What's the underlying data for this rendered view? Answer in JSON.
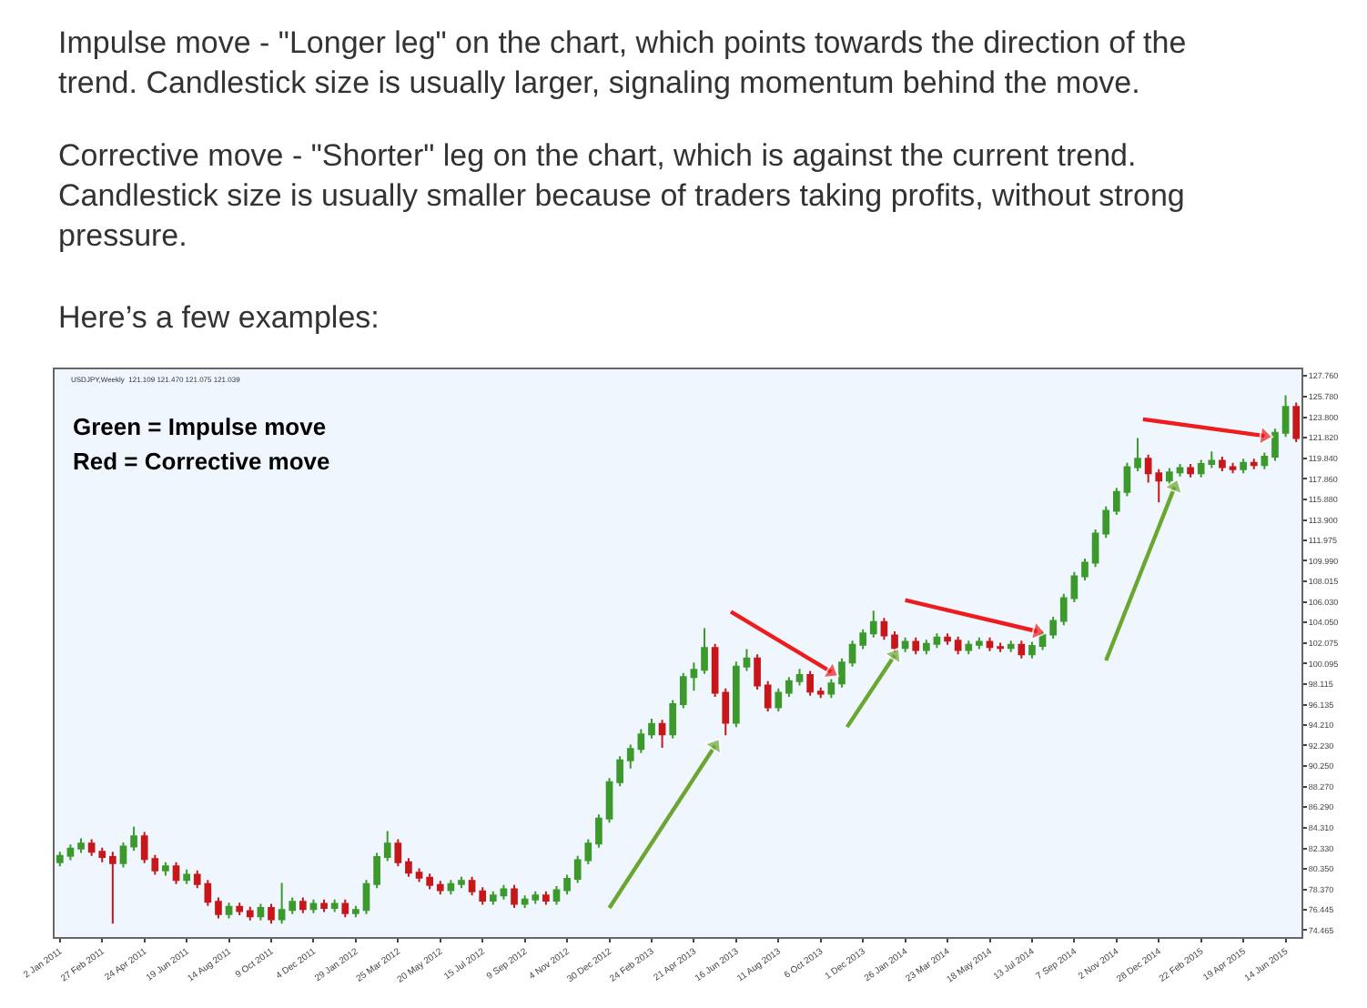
{
  "chart_data": {
    "type": "candlestick",
    "annotations": [
      "Impulse move - \"Longer leg\" on the chart, which points towards the direction of the trend. Candlestick size is usually larger, signaling momentum behind the move.",
      "Corrective move - \"Shorter\" leg on the chart, which is against the current trend. Candlestick size is usually smaller because of traders taking profits, without strong pressure.",
      "Here’s a few examples:",
      "USDJPY,Weekly  121.109 121.470 121.075 121.039",
      "Green = Impulse move",
      "Red = Corrective move"
    ],
    "colors": [
      "#3c9a2c",
      "#3c9a2c",
      "#3c9a2c",
      "#c8171b",
      "#c8171b",
      "#c8171b",
      "#3c9a2c",
      "#3c9a2c",
      "#c8171b",
      "#c8171b",
      "#3c9a2c",
      "#c8171b",
      "#3c9a2c",
      "#c8171b",
      "#c8171b",
      "#c8171b",
      "#3c9a2c",
      "#c8171b",
      "#c8171b",
      "#3c9a2c",
      "#c8171b",
      "#3c9a2c",
      "#3c9a2c",
      "#c8171b",
      "#3c9a2c",
      "#c8171b",
      "#3c9a2c",
      "#c8171b",
      "#3c9a2c",
      "#3c9a2c",
      "#3c9a2c",
      "#3c9a2c",
      "#c8171b",
      "#c8171b",
      "#c8171b",
      "#c8171b",
      "#c8171b",
      "#3c9a2c",
      "#3c9a2c",
      "#c8171b",
      "#c8171b",
      "#3c9a2c",
      "#3c9a2c",
      "#c8171b",
      "#3c9a2c",
      "#3c9a2c",
      "#c8171b",
      "#3c9a2c",
      "#3c9a2c",
      "#3c9a2c",
      "#3c9a2c",
      "#3c9a2c",
      "#3c9a2c",
      "#3c9a2c",
      "#3c9a2c",
      "#3c9a2c",
      "#3c9a2c",
      "#c8171b",
      "#3c9a2c",
      "#3c9a2c",
      "#3c9a2c",
      "#3c9a2c",
      "#c8171b",
      "#c8171b",
      "#3c9a2c",
      "#3c9a2c",
      "#c8171b",
      "#c8171b",
      "#3c9a2c",
      "#3c9a2c",
      "#3c9a2c",
      "#c8171b",
      "#c8171b",
      "#3c9a2c",
      "#3c9a2c",
      "#3c9a2c",
      "#3c9a2c",
      "#3c9a2c",
      "#c8171b",
      "#c8171b",
      "#3c9a2c",
      "#c8171b",
      "#3c9a2c",
      "#3c9a2c",
      "#c8171b",
      "#c8171b",
      "#3c9a2c",
      "#3c9a2c",
      "#c8171b",
      "#c8171b",
      "#3c9a2c",
      "#c8171b",
      "#3c9a2c",
      "#3c9a2c",
      "#3c9a2c",
      "#3c9a2c",
      "#3c9a2c",
      "#3c9a2c",
      "#3c9a2c",
      "#3c9a2c",
      "#3c9a2c",
      "#3c9a2c",
      "#3c9a2c",
      "#c8171b",
      "#c8171b",
      "#3c9a2c",
      "#3c9a2c",
      "#c8171b",
      "#3c9a2c",
      "#3c9a2c",
      "#c8171b",
      "#c8171b",
      "#3c9a2c",
      "#c8171b",
      "#3c9a2c",
      "#3c9a2c",
      "#3c9a2c",
      "#c8171b"
    ],
    "x": [
      "2011-01-02",
      "2011-01-16",
      "2011-01-30",
      "2011-02-13",
      "2011-02-27",
      "2011-03-13",
      "2011-03-27",
      "2011-04-10",
      "2011-04-24",
      "2011-05-08",
      "2011-05-22",
      "2011-06-05",
      "2011-06-19",
      "2011-07-03",
      "2011-07-17",
      "2011-07-31",
      "2011-08-14",
      "2011-08-28",
      "2011-09-11",
      "2011-09-25",
      "2011-10-09",
      "2011-10-23",
      "2011-11-06",
      "2011-11-20",
      "2011-12-04",
      "2011-12-18",
      "2012-01-01",
      "2012-01-15",
      "2012-01-29",
      "2012-02-12",
      "2012-02-26",
      "2012-03-11",
      "2012-03-25",
      "2012-04-08",
      "2012-04-22",
      "2012-05-06",
      "2012-05-20",
      "2012-06-03",
      "2012-06-17",
      "2012-07-01",
      "2012-07-15",
      "2012-07-29",
      "2012-08-12",
      "2012-08-26",
      "2012-09-09",
      "2012-09-23",
      "2012-10-07",
      "2012-10-21",
      "2012-11-04",
      "2012-11-18",
      "2012-12-02",
      "2012-12-16",
      "2012-12-30",
      "2013-01-13",
      "2013-01-27",
      "2013-02-10",
      "2013-02-24",
      "2013-03-10",
      "2013-03-24",
      "2013-04-07",
      "2013-04-21",
      "2013-05-05",
      "2013-05-19",
      "2013-06-02",
      "2013-06-16",
      "2013-06-30",
      "2013-07-14",
      "2013-07-28",
      "2013-08-11",
      "2013-08-25",
      "2013-09-08",
      "2013-09-22",
      "2013-10-06",
      "2013-10-20",
      "2013-11-03",
      "2013-11-17",
      "2013-12-01",
      "2013-12-15",
      "2013-12-29",
      "2014-01-12",
      "2014-01-26",
      "2014-02-09",
      "2014-02-23",
      "2014-03-09",
      "2014-03-23",
      "2014-04-06",
      "2014-04-20",
      "2014-05-04",
      "2014-05-18",
      "2014-06-01",
      "2014-06-15",
      "2014-06-29",
      "2014-07-13",
      "2014-07-27",
      "2014-08-10",
      "2014-08-24",
      "2014-09-07",
      "2014-09-21",
      "2014-10-05",
      "2014-10-19",
      "2014-11-02",
      "2014-11-16",
      "2014-11-30",
      "2014-12-14",
      "2014-12-28",
      "2015-01-11",
      "2015-01-25",
      "2015-02-08",
      "2015-02-22",
      "2015-03-08",
      "2015-03-22",
      "2015-04-05",
      "2015-04-19",
      "2015-05-03",
      "2015-05-17",
      "2015-05-31",
      "2015-06-14",
      "2015-06-28"
    ],
    "ohlc": [
      [
        81.0,
        82.0,
        80.6,
        81.6
      ],
      [
        81.6,
        82.7,
        81.2,
        82.3
      ],
      [
        82.3,
        83.3,
        81.9,
        82.8
      ],
      [
        82.8,
        83.2,
        81.6,
        82.0
      ],
      [
        82.0,
        82.4,
        81.0,
        81.5
      ],
      [
        81.5,
        82.0,
        75.1,
        80.9
      ],
      [
        80.9,
        82.9,
        80.5,
        82.5
      ],
      [
        82.5,
        84.4,
        82.1,
        83.5
      ],
      [
        83.5,
        83.9,
        80.9,
        81.3
      ],
      [
        81.3,
        81.7,
        79.8,
        80.2
      ],
      [
        80.2,
        81.0,
        79.7,
        80.6
      ],
      [
        80.6,
        81.0,
        78.9,
        79.3
      ],
      [
        79.3,
        80.3,
        78.9,
        79.8
      ],
      [
        79.8,
        80.2,
        78.5,
        78.9
      ],
      [
        78.9,
        79.3,
        76.8,
        77.2
      ],
      [
        77.2,
        77.6,
        75.6,
        76.0
      ],
      [
        76.0,
        77.1,
        75.6,
        76.7
      ],
      [
        76.7,
        77.1,
        75.9,
        76.3
      ],
      [
        76.3,
        76.7,
        75.4,
        75.8
      ],
      [
        75.8,
        77.0,
        75.4,
        76.6
      ],
      [
        76.6,
        77.0,
        75.1,
        75.5
      ],
      [
        75.5,
        79.0,
        75.1,
        76.4
      ],
      [
        76.4,
        77.6,
        76.0,
        77.2
      ],
      [
        77.2,
        77.6,
        76.1,
        76.5
      ],
      [
        76.5,
        77.4,
        76.1,
        77.0
      ],
      [
        77.0,
        77.4,
        76.2,
        76.6
      ],
      [
        76.6,
        77.4,
        76.2,
        77.0
      ],
      [
        77.0,
        77.4,
        75.7,
        76.1
      ],
      [
        76.1,
        76.8,
        75.7,
        76.4
      ],
      [
        76.4,
        79.3,
        76.0,
        78.9
      ],
      [
        78.9,
        81.9,
        78.5,
        81.5
      ],
      [
        81.5,
        84.0,
        81.1,
        82.8
      ],
      [
        82.8,
        83.2,
        80.6,
        81.0
      ],
      [
        81.0,
        81.4,
        79.6,
        80.0
      ],
      [
        80.0,
        80.4,
        79.1,
        79.5
      ],
      [
        79.5,
        79.9,
        78.4,
        78.8
      ],
      [
        78.8,
        79.2,
        77.9,
        78.3
      ],
      [
        78.3,
        79.3,
        77.9,
        78.9
      ],
      [
        78.9,
        79.6,
        78.5,
        79.2
      ],
      [
        79.2,
        79.6,
        77.8,
        78.2
      ],
      [
        78.2,
        78.6,
        76.9,
        77.3
      ],
      [
        77.3,
        78.2,
        76.9,
        77.8
      ],
      [
        77.8,
        78.8,
        77.4,
        78.4
      ],
      [
        78.4,
        78.8,
        76.6,
        77.0
      ],
      [
        77.0,
        77.8,
        76.6,
        77.4
      ],
      [
        77.4,
        78.2,
        77.0,
        77.8
      ],
      [
        77.8,
        78.2,
        76.9,
        77.3
      ],
      [
        77.3,
        78.7,
        76.9,
        78.3
      ],
      [
        78.3,
        79.8,
        77.9,
        79.4
      ],
      [
        79.4,
        81.6,
        79.0,
        81.2
      ],
      [
        81.2,
        83.2,
        80.8,
        82.8
      ],
      [
        82.8,
        85.6,
        82.4,
        85.2
      ],
      [
        85.2,
        89.1,
        84.8,
        88.7
      ],
      [
        88.7,
        91.2,
        88.3,
        90.8
      ],
      [
        90.8,
        92.3,
        90.0,
        91.9
      ],
      [
        91.9,
        93.8,
        91.5,
        93.3
      ],
      [
        93.3,
        94.8,
        92.9,
        94.3
      ],
      [
        94.3,
        94.7,
        92.0,
        93.3
      ],
      [
        93.3,
        96.6,
        92.9,
        96.2
      ],
      [
        96.2,
        99.2,
        95.8,
        98.8
      ],
      [
        98.8,
        100.2,
        97.5,
        99.5
      ],
      [
        99.5,
        103.5,
        99.1,
        101.6
      ],
      [
        101.6,
        102.0,
        96.9,
        97.3
      ],
      [
        97.3,
        97.7,
        93.2,
        94.4
      ],
      [
        94.4,
        100.3,
        94.0,
        99.8
      ],
      [
        99.8,
        101.5,
        99.4,
        100.6
      ],
      [
        100.6,
        101.0,
        97.6,
        98.0
      ],
      [
        98.0,
        98.4,
        95.5,
        95.9
      ],
      [
        95.9,
        97.7,
        95.5,
        97.3
      ],
      [
        97.3,
        98.8,
        96.9,
        98.4
      ],
      [
        98.4,
        99.6,
        98.0,
        99.0
      ],
      [
        99.0,
        99.4,
        97.0,
        97.4
      ],
      [
        97.4,
        97.8,
        96.8,
        97.2
      ],
      [
        97.2,
        98.6,
        96.8,
        98.2
      ],
      [
        98.2,
        100.6,
        97.8,
        100.2
      ],
      [
        100.2,
        102.3,
        99.8,
        101.9
      ],
      [
        101.9,
        103.4,
        101.5,
        103.0
      ],
      [
        103.0,
        105.2,
        102.6,
        104.1
      ],
      [
        104.1,
        104.5,
        102.4,
        102.8
      ],
      [
        102.8,
        103.2,
        101.2,
        101.6
      ],
      [
        101.6,
        102.6,
        101.2,
        102.2
      ],
      [
        102.2,
        102.6,
        101.0,
        101.4
      ],
      [
        101.4,
        102.4,
        101.0,
        102.0
      ],
      [
        102.0,
        103.0,
        101.6,
        102.6
      ],
      [
        102.6,
        103.0,
        101.9,
        102.3
      ],
      [
        102.3,
        102.7,
        101.0,
        101.4
      ],
      [
        101.4,
        102.3,
        101.0,
        101.9
      ],
      [
        101.9,
        102.6,
        101.5,
        102.2
      ],
      [
        102.2,
        102.6,
        101.3,
        101.7
      ],
      [
        101.7,
        102.1,
        101.2,
        101.6
      ],
      [
        101.6,
        102.3,
        101.2,
        101.9
      ],
      [
        101.9,
        102.3,
        100.6,
        101.0
      ],
      [
        101.0,
        102.2,
        100.6,
        101.8
      ],
      [
        101.8,
        103.3,
        101.4,
        102.9
      ],
      [
        102.9,
        104.6,
        102.5,
        104.2
      ],
      [
        104.2,
        106.8,
        103.8,
        106.4
      ],
      [
        106.4,
        108.9,
        106.0,
        108.5
      ],
      [
        108.5,
        110.2,
        108.1,
        109.8
      ],
      [
        109.8,
        113.0,
        109.4,
        112.6
      ],
      [
        112.6,
        115.2,
        112.2,
        114.8
      ],
      [
        114.8,
        117.0,
        114.4,
        116.6
      ],
      [
        116.6,
        119.4,
        116.2,
        119.0
      ],
      [
        119.0,
        121.8,
        118.6,
        119.8
      ],
      [
        119.8,
        120.2,
        117.5,
        118.4
      ],
      [
        118.4,
        118.8,
        115.6,
        117.7
      ],
      [
        117.7,
        118.9,
        117.3,
        118.5
      ],
      [
        118.5,
        119.3,
        118.1,
        118.9
      ],
      [
        118.9,
        119.3,
        118.0,
        118.4
      ],
      [
        118.4,
        119.7,
        118.0,
        119.3
      ],
      [
        119.3,
        120.5,
        118.9,
        119.6
      ],
      [
        119.6,
        120.0,
        118.6,
        119.0
      ],
      [
        119.0,
        119.4,
        118.4,
        118.8
      ],
      [
        118.8,
        119.8,
        118.4,
        119.4
      ],
      [
        119.4,
        119.8,
        118.8,
        119.2
      ],
      [
        119.2,
        120.4,
        118.8,
        120.0
      ],
      [
        120.0,
        122.7,
        119.6,
        122.3
      ],
      [
        122.3,
        125.9,
        121.9,
        124.8
      ],
      [
        124.8,
        125.2,
        121.4,
        121.8
      ]
    ],
    "series": [
      {
        "type": "line",
        "color": "#6aa630",
        "x": [
          "2012-12-30",
          "2013-05-19"
        ],
        "values": [
          76.6,
          92.2
        ]
      },
      {
        "type": "line",
        "color": "#6aa630",
        "x": [
          "2013-11-10",
          "2014-01-12"
        ],
        "values": [
          94.0,
          100.9
        ]
      },
      {
        "type": "line",
        "color": "#6aa630",
        "x": [
          "2014-10-19",
          "2015-01-18"
        ],
        "values": [
          100.4,
          117.1
        ]
      },
      {
        "type": "line",
        "color": "#ee1c1c",
        "x": [
          "2013-06-09",
          "2013-10-20"
        ],
        "values": [
          105.1,
          99.3
        ]
      },
      {
        "type": "line",
        "color": "#ee1c1c",
        "x": [
          "2014-01-26",
          "2014-07-20"
        ],
        "values": [
          106.2,
          103.2
        ]
      },
      {
        "type": "line",
        "color": "#ee1c1c",
        "x": [
          "2014-12-07",
          "2015-05-17"
        ],
        "values": [
          123.6,
          122.0
        ]
      }
    ],
    "marker": "triangle",
    "xlim": [
      "2010-12-26",
      "2015-07-05"
    ],
    "xticks": [
      {
        "value": "2011-01-02",
        "label": "2 Jan 2011"
      },
      {
        "value": "2011-02-27",
        "label": "27 Feb 2011"
      },
      {
        "value": "2011-04-24",
        "label": "24 Apr 2011"
      },
      {
        "value": "2011-06-19",
        "label": "19 Jun 2011"
      },
      {
        "value": "2011-08-14",
        "label": "14 Aug 2011"
      },
      {
        "value": "2011-10-09",
        "label": "9 Oct 2011"
      },
      {
        "value": "2011-12-04",
        "label": "4 Dec 2011"
      },
      {
        "value": "2012-01-29",
        "label": "29 Jan 2012"
      },
      {
        "value": "2012-03-25",
        "label": "25 Mar 2012"
      },
      {
        "value": "2012-05-20",
        "label": "20 May 2012"
      },
      {
        "value": "2012-07-15",
        "label": "15 Jul 2012"
      },
      {
        "value": "2012-09-09",
        "label": "9 Sep 2012"
      },
      {
        "value": "2012-11-04",
        "label": "4 Nov 2012"
      },
      {
        "value": "2012-12-30",
        "label": "30 Dec 2012"
      },
      {
        "value": "2013-02-24",
        "label": "24 Feb 2013"
      },
      {
        "value": "2013-04-21",
        "label": "21 Apr 2013"
      },
      {
        "value": "2013-06-16",
        "label": "16 Jun 2013"
      },
      {
        "value": "2013-08-11",
        "label": "11 Aug 2013"
      },
      {
        "value": "2013-10-06",
        "label": "6 Oct 2013"
      },
      {
        "value": "2013-12-01",
        "label": "1 Dec 2013"
      },
      {
        "value": "2014-01-26",
        "label": "26 Jan 2014"
      },
      {
        "value": "2014-03-23",
        "label": "23 Mar 2014"
      },
      {
        "value": "2014-05-18",
        "label": "18 May 2014"
      },
      {
        "value": "2014-07-13",
        "label": "13 Jul 2014"
      },
      {
        "value": "2014-09-07",
        "label": "7 Sep 2014"
      },
      {
        "value": "2014-11-02",
        "label": "2 Nov 2014"
      },
      {
        "value": "2014-12-28",
        "label": "28 Dec 2014"
      },
      {
        "value": "2015-02-22",
        "label": "22 Feb 2015"
      },
      {
        "value": "2015-04-19",
        "label": "19 Apr 2015"
      },
      {
        "value": "2015-06-14",
        "label": "14 Jun 2015"
      }
    ],
    "ylim": [
      73.8,
      128.4
    ],
    "yticks": [
      74.465,
      76.445,
      {
        "value": 78.37,
        "label": "78.370"
      },
      {
        "value": 80.35,
        "label": "80.350"
      },
      {
        "value": 82.33,
        "label": "82.330"
      },
      {
        "value": 84.31,
        "label": "84.310"
      },
      {
        "value": 86.29,
        "label": "86.290"
      },
      {
        "value": 88.27,
        "label": "88.270"
      },
      {
        "value": 90.25,
        "label": "90.250"
      },
      {
        "value": 92.23,
        "label": "92.230"
      },
      {
        "value": 94.21,
        "label": "94.210"
      },
      96.135,
      98.115,
      100.095,
      102.075,
      {
        "value": 104.05,
        "label": "104.050"
      },
      {
        "value": 106.03,
        "label": "106.030"
      },
      108.015,
      {
        "value": 109.99,
        "label": "109.990"
      },
      111.975,
      {
        "value": 113.9,
        "label": "113.900"
      },
      {
        "value": 115.88,
        "label": "115.880"
      },
      {
        "value": 117.86,
        "label": "117.860"
      },
      {
        "value": 119.84,
        "label": "119.840"
      },
      {
        "value": 121.82,
        "label": "121.820"
      },
      {
        "value": 123.8,
        "label": "123.800"
      },
      {
        "value": 125.78,
        "label": "125.780"
      },
      {
        "value": 127.76,
        "label": "127.760"
      }
    ]
  }
}
